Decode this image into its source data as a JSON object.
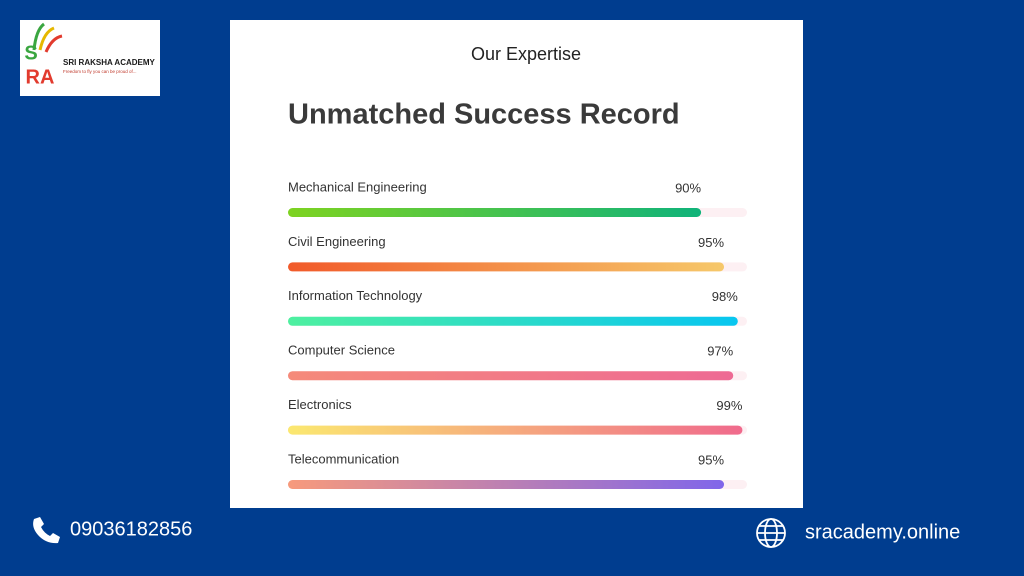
{
  "logo": {
    "letter_top": "S",
    "letters_bottom": "RA",
    "name": "SRI RAKSHA ACADEMY",
    "tagline": "Freedom to fly you can be proud of..."
  },
  "chart_data": {
    "type": "progress",
    "subtitle": "Our Expertise",
    "title": "Unmatched Success Record",
    "categories": [
      "Mechanical Engineering",
      "Civil Engineering",
      "Information Technology",
      "Computer Science",
      "Electronics",
      "Telecommunication"
    ],
    "values": [
      90,
      95,
      98,
      97,
      99,
      95
    ],
    "value_labels": [
      "90%",
      "95%",
      "98%",
      "97%",
      "99%",
      "95%"
    ],
    "xlim": [
      0,
      100
    ],
    "colors": [
      [
        "#7ed321",
        "#10b37a"
      ],
      [
        "#f15a2a",
        "#f6c86a"
      ],
      [
        "#4ef0a0",
        "#08c6f0"
      ],
      [
        "#f58a7a",
        "#ee6a94"
      ],
      [
        "#fbe870",
        "#f06a8c"
      ],
      [
        "#f79a7c",
        "#8066ea"
      ]
    ]
  },
  "footer": {
    "phone": "09036182856",
    "website": "sracademy.online"
  }
}
